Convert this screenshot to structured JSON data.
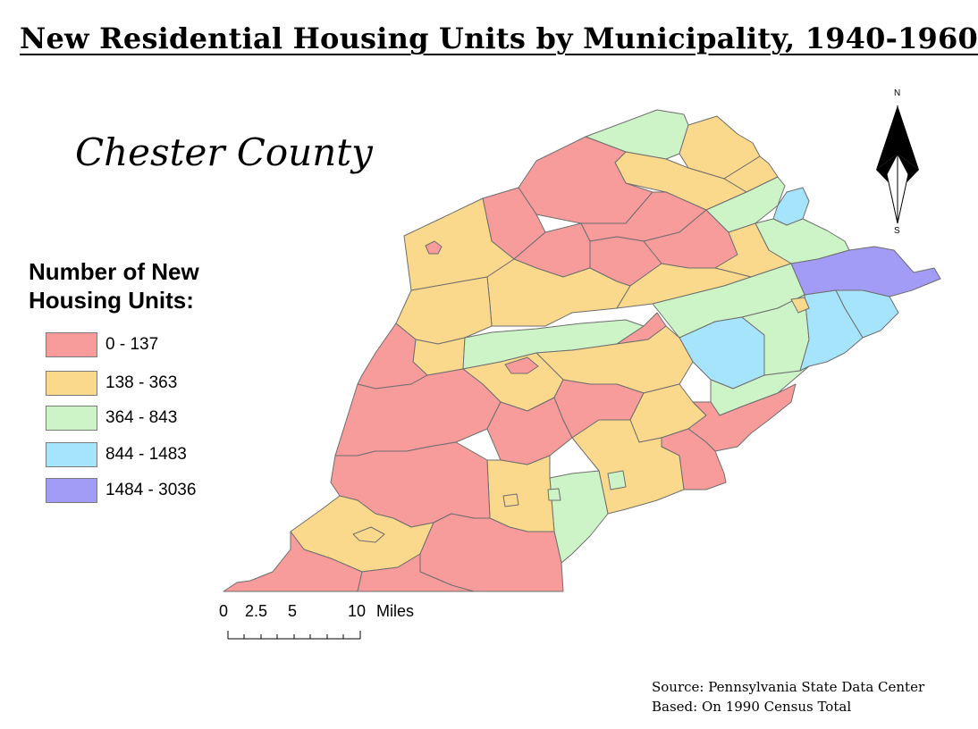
{
  "title": "New Residential Housing Units by Municipality, 1940-1960",
  "county": "Chester County",
  "legend": {
    "title_lines": [
      "Number of New",
      "Housing Units:"
    ],
    "classes": [
      {
        "label": "0 - 137",
        "color": "#f79b9b"
      },
      {
        "label": "138 - 363",
        "color": "#fbd98c"
      },
      {
        "label": "364 - 843",
        "color": "#cdf4c7"
      },
      {
        "label": "844 - 1483",
        "color": "#a5e4fb"
      },
      {
        "label": "1484 - 3036",
        "color": "#a39cf7"
      }
    ]
  },
  "scale_bar": {
    "ticks": [
      "0",
      "2.5",
      "5",
      "10"
    ],
    "unit": "Miles"
  },
  "north_arrow": {
    "north": "N",
    "south": "S"
  },
  "source": {
    "line1": "Source: Pennsylvania State Data Center",
    "line2": "Based: On 1990 Census Total"
  },
  "colors": {
    "boundary": "#6e6e6e",
    "background": "#ffffff"
  }
}
